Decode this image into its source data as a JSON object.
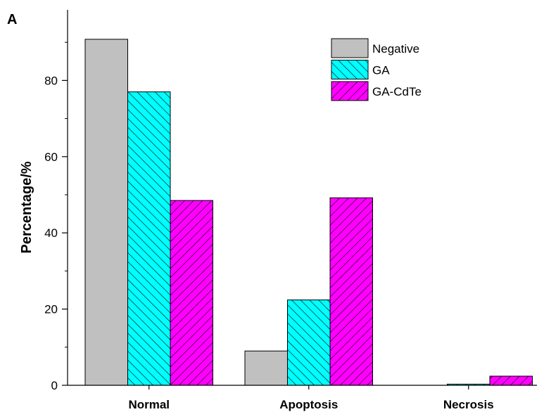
{
  "panel_label": "A",
  "chart_data": {
    "type": "bar",
    "categories": [
      "Normal",
      "Apoptosis",
      "Necrosis"
    ],
    "series": [
      {
        "name": "Negative",
        "values": [
          90.8,
          9.0,
          0.0
        ],
        "color": "#c0c0c0",
        "pattern": "solid"
      },
      {
        "name": "GA",
        "values": [
          77.0,
          22.4,
          0.3
        ],
        "color": "#00ffff",
        "pattern": "backslash-hatch"
      },
      {
        "name": "GA-CdTe",
        "values": [
          48.5,
          49.2,
          2.4
        ],
        "color": "#ff00ff",
        "pattern": "slash-hatch"
      }
    ],
    "ylabel": "Percentage/%",
    "xlabel": "",
    "ylim": [
      0,
      95
    ],
    "yticks": [
      0,
      20,
      40,
      60,
      80
    ],
    "legend_position": "top-right",
    "grid": false
  }
}
